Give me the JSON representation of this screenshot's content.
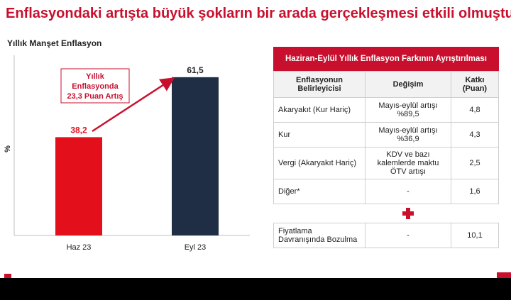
{
  "title": "Enflasyondaki artışta büyük şokların bir arada gerçekleşmesi etkili olmuştur.",
  "chart_data": {
    "type": "bar",
    "title": "Yıllık Manşet Enflasyon",
    "ylabel": "%",
    "xlabel": "",
    "categories": [
      "Haz 23",
      "Eyl 23"
    ],
    "values": [
      38.2,
      61.5
    ],
    "value_labels": [
      "38,2",
      "61,5"
    ],
    "bar_colors": [
      "#e3101c",
      "#1f2e44"
    ],
    "ylim": [
      0,
      70
    ],
    "grid": false,
    "annotation": {
      "lines": [
        "Yıllık",
        "Enflasyonda",
        "23,3 Puan Artış"
      ],
      "color": "#c8102e"
    }
  },
  "table": {
    "title": "Haziran-Eylül Yıllık Enflasyon Farkının Ayrıştırılması",
    "headers": [
      "Enflasyonun Belirleyicisi",
      "Değişim",
      "Katkı (Puan)"
    ],
    "rows": [
      {
        "factor": "Akaryakıt (Kur Hariç)",
        "change": "Mayıs-eylül artışı %89,5",
        "contribution": "4,8"
      },
      {
        "factor": "Kur",
        "change": "Mayıs-eylül artışı %36,9",
        "contribution": "4,3"
      },
      {
        "factor": "Vergi (Akaryakıt Hariç)",
        "change": "KDV ve bazı kalemlerde maktu ÖTV artışı",
        "contribution": "2,5"
      },
      {
        "factor": "Diğer*",
        "change": "-",
        "contribution": "1,6"
      }
    ],
    "extra_row": {
      "factor": "Fiyatlama Davranışında Bozulma",
      "change": "-",
      "contribution": "10,1"
    }
  },
  "colors": {
    "accent": "#c8102e",
    "bar_june": "#e3101c",
    "bar_sept": "#1f2e44",
    "footer": "#000000"
  }
}
